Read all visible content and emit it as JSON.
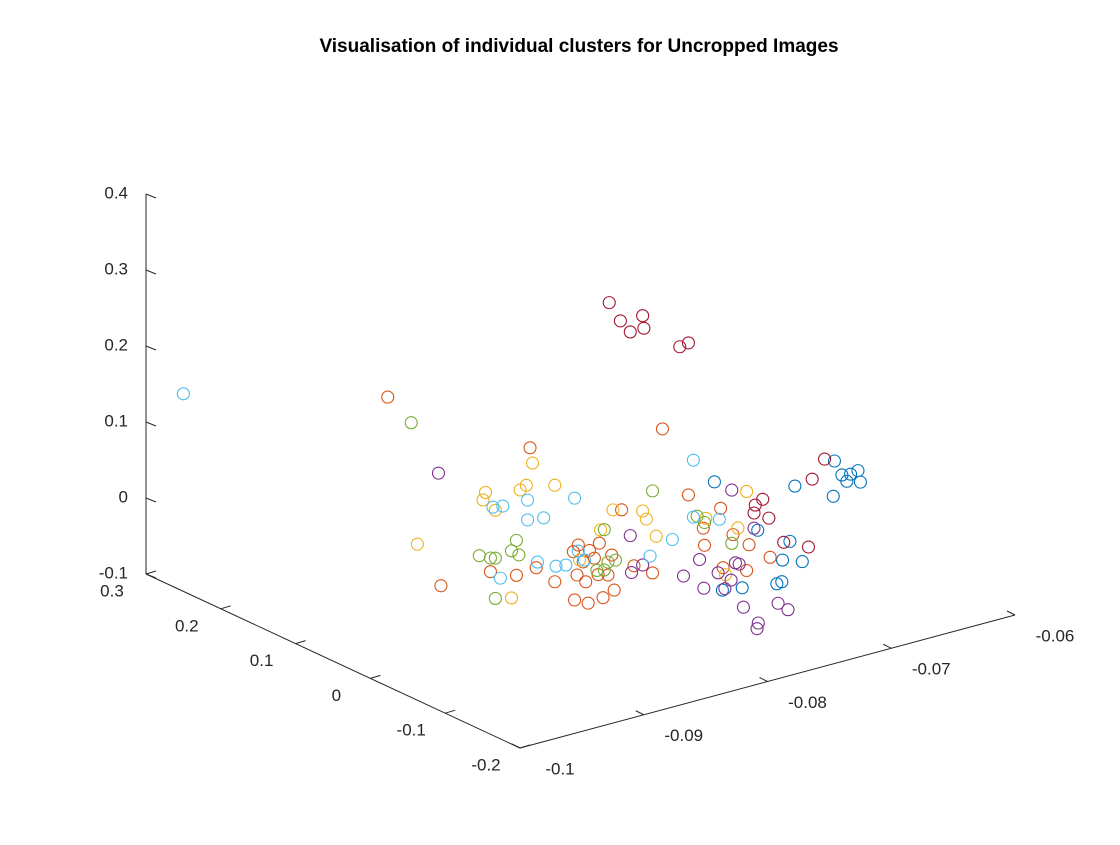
{
  "chart_data": {
    "type": "scatter3d",
    "title": "Visualisation of individual clusters for Uncropped Images",
    "xlim": [
      -0.1,
      -0.06
    ],
    "xticks": [
      -0.1,
      -0.09,
      -0.08,
      -0.07,
      -0.06
    ],
    "ylim": [
      -0.2,
      0.3
    ],
    "yticks": [
      -0.2,
      -0.1,
      0,
      0.1,
      0.2,
      0.3
    ],
    "zlim": [
      -0.1,
      0.4
    ],
    "zticks": [
      -0.1,
      0,
      0.1,
      0.2,
      0.3,
      0.4
    ],
    "grid": false,
    "series": [
      {
        "color": "#0072BD",
        "x": [
          -0.0625,
          -0.0619,
          -0.0612,
          -0.0606,
          -0.0615,
          -0.0604,
          -0.0626,
          -0.0657,
          -0.0722,
          -0.0687,
          -0.0661,
          -0.0651,
          -0.0667,
          -0.0732,
          -0.0728,
          -0.076,
          -0.0776
        ],
        "y": [
          0,
          0,
          0,
          0,
          0,
          0,
          0,
          0,
          0,
          0,
          0,
          0,
          0,
          -0.1,
          -0.1,
          -0.1,
          -0.1
        ],
        "z": [
          0.022,
          0.001,
          -0.001,
          0.001,
          -0.009,
          -0.015,
          -0.024,
          0.003,
          0.037,
          -0.042,
          -0.068,
          -0.099,
          -0.09,
          -0.047,
          -0.046,
          -0.04,
          -0.036
        ]
      },
      {
        "color": "#D95319",
        "x": [
          -0.0986,
          -0.0871,
          -0.0764,
          -0.0943,
          -0.0832,
          -0.0823,
          -0.0815,
          -0.0819,
          -0.0828,
          -0.0833,
          -0.0808,
          -0.0816,
          -0.0826,
          -0.0851,
          -0.0835,
          -0.0824,
          -0.0812,
          -0.0803,
          -0.0787,
          -0.0772,
          -0.0743,
          -0.0731,
          -0.073,
          -0.0715,
          -0.0717,
          -0.0707,
          -0.0696,
          -0.0694,
          -0.0677,
          -0.0903,
          -0.0882,
          -0.0866,
          -0.0797,
          -0.0805,
          -0.0836
        ],
        "y": [
          0,
          0,
          0,
          0,
          0,
          0,
          0,
          0,
          0,
          0,
          0,
          0,
          0,
          0,
          0,
          0,
          0,
          0,
          0,
          0,
          0,
          0,
          0,
          0,
          0,
          0,
          0,
          0,
          0,
          0,
          0,
          0,
          0,
          0,
          0
        ],
        "z": [
          0.264,
          0.147,
          0.125,
          -0.003,
          0.002,
          -0.009,
          -0.003,
          -0.021,
          -0.022,
          -0.037,
          -0.048,
          -0.044,
          -0.049,
          -0.038,
          -0.069,
          -0.078,
          -0.076,
          -0.07,
          -0.045,
          -0.061,
          0.029,
          -0.02,
          -0.043,
          -0.079,
          0.0,
          -0.039,
          -0.091,
          -0.058,
          -0.082,
          -0.002,
          -0.016,
          -0.013,
          0.033,
          -0.023,
          -0.005
        ]
      },
      {
        "color": "#EDB120",
        "x": [
          -0.0907,
          -0.0909,
          -0.0899,
          -0.0874,
          -0.0879,
          -0.0869,
          -0.0851,
          -0.0962,
          -0.0886,
          -0.0814,
          -0.0804,
          -0.078,
          -0.0777,
          -0.0769,
          -0.0729,
          -0.0696,
          -0.0703,
          -0.0713,
          -0.0831
        ],
        "y": [
          0,
          0,
          0,
          0,
          0,
          0,
          0,
          0,
          0,
          0,
          0,
          0,
          0,
          0,
          0,
          0,
          0,
          0,
          0
        ],
        "z": [
          0.104,
          0.095,
          0.077,
          0.099,
          0.095,
          0.126,
          0.089,
          0.06,
          -0.044,
          0.014,
          0.036,
          0.024,
          0.012,
          -0.014,
          -0.008,
          0.013,
          -0.032,
          -0.089,
          -0.018
        ]
      },
      {
        "color": "#7E2F8E",
        "x": [
          -0.0945,
          -0.079,
          -0.078,
          -0.0789,
          -0.0747,
          -0.0734,
          -0.0791,
          -0.0719,
          -0.0769,
          -0.0705,
          -0.0708,
          -0.069,
          -0.0774,
          -0.0759,
          -0.0731,
          -0.0723,
          -0.0747,
          -0.0748,
          -0.0702
        ],
        "y": [
          0,
          0,
          0,
          0,
          0,
          0,
          -0.1,
          0,
          -0.1,
          0,
          0,
          0,
          -0.1,
          -0.1,
          -0.1,
          -0.1,
          -0.1,
          -0.1,
          0
        ],
        "z": [
          0.146,
          -0.004,
          -0.047,
          -0.053,
          -0.076,
          -0.06,
          -0.027,
          -0.084,
          -0.026,
          -0.077,
          0.02,
          -0.038,
          -0.035,
          -0.066,
          -0.073,
          -0.085,
          -0.092,
          -0.099,
          -0.08
        ]
      },
      {
        "color": "#77AC30",
        "x": [
          -0.0967,
          -0.0912,
          -0.0903,
          -0.0899,
          -0.0886,
          -0.0882,
          -0.088,
          -0.0899,
          -0.0811,
          -0.0808,
          -0.0811,
          -0.0817,
          -0.0802,
          -0.0772,
          -0.0736,
          -0.073,
          -0.0708
        ],
        "y": [
          0,
          0,
          0,
          0,
          0,
          0,
          0,
          0,
          0,
          0,
          0,
          0,
          0,
          0,
          0,
          0,
          0
        ],
        "z": [
          0.222,
          0.023,
          0.016,
          0.014,
          0.018,
          0.03,
          0.01,
          -0.039,
          0.013,
          -0.031,
          -0.04,
          -0.038,
          -0.031,
          0.047,
          -0.002,
          -0.013,
          -0.05
        ]
      },
      {
        "color": "#4DBEEE",
        "x": [
          -0.1,
          -0.0739,
          -0.0718,
          -0.0739,
          -0.0756,
          -0.0774,
          -0.0835,
          -0.086,
          -0.0873,
          -0.0873,
          -0.0893,
          -0.0901,
          -0.085,
          -0.0842,
          -0.0832,
          -0.0827,
          -0.0895,
          -0.0865
        ],
        "y": [
          0.25,
          0,
          0,
          0,
          0,
          0,
          0,
          0,
          0,
          0,
          0,
          0,
          0,
          0,
          0,
          0,
          0,
          0
        ],
        "z": [
          0.16,
          0.073,
          -0.014,
          -0.002,
          -0.024,
          -0.038,
          0.065,
          0.05,
          0.053,
          0.079,
          0.08,
          0.082,
          -0.018,
          -0.02,
          -0.006,
          -0.02,
          -0.014,
          -0.006
        ]
      },
      {
        "color": "#A2142F",
        "x": [
          -0.0807,
          -0.0798,
          -0.078,
          -0.079,
          -0.0779,
          -0.075,
          -0.0743,
          -0.0633,
          -0.0643,
          -0.0689,
          -0.0683,
          -0.069,
          -0.0678,
          -0.0666,
          -0.0646
        ],
        "y": [
          0,
          0,
          0,
          0,
          0,
          0,
          0,
          0,
          0,
          0,
          0,
          0,
          0,
          0,
          0
        ],
        "z": [
          0.31,
          0.282,
          0.281,
          0.264,
          0.264,
          0.227,
          0.229,
          0.028,
          0.006,
          -0.008,
          -0.003,
          -0.018,
          -0.03,
          -0.067,
          -0.082
        ]
      }
    ]
  }
}
